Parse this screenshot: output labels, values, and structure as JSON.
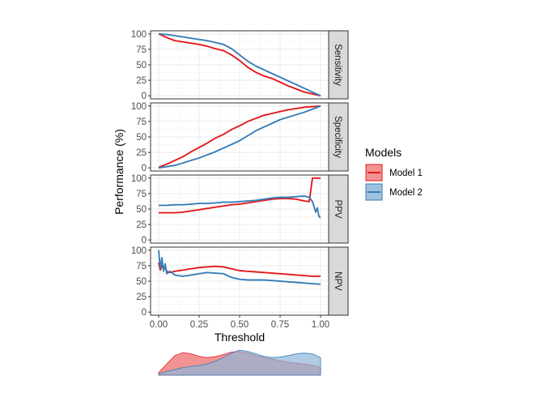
{
  "chart_data": {
    "type": "line",
    "xlabel": "Threshold",
    "ylabel": "Performance (%)",
    "xlim": [
      -0.05,
      1.05
    ],
    "xticks": [
      0.0,
      0.25,
      0.5,
      0.75,
      1.0
    ],
    "xtick_labels": [
      "0.00",
      "0.25",
      "0.50",
      "0.75",
      "1.00"
    ],
    "ylim": [
      -5,
      105
    ],
    "yticks": [
      0,
      25,
      50,
      75,
      100
    ],
    "ytick_labels": [
      "0",
      "25",
      "50",
      "75",
      "100"
    ],
    "legend": {
      "title": "Models",
      "placement": "right",
      "entries": [
        {
          "name": "Model 1",
          "color": "#e41a1c",
          "fill": "#f08080"
        },
        {
          "name": "Model 2",
          "color": "#377eb8",
          "fill": "#8fb6da"
        }
      ]
    },
    "colors": {
      "model1": "#e41a1c",
      "model2": "#377eb8",
      "strip_bg": "#d9d9d9"
    },
    "panels": [
      {
        "name": "Sensitivity",
        "series": [
          {
            "name": "Model 1",
            "x": [
              0,
              0.05,
              0.1,
              0.15,
              0.2,
              0.25,
              0.3,
              0.35,
              0.4,
              0.45,
              0.5,
              0.55,
              0.6,
              0.65,
              0.7,
              0.75,
              0.8,
              0.85,
              0.9,
              0.95,
              1.0
            ],
            "y": [
              100,
              94,
              89,
              87,
              85,
              83,
              80,
              76,
              73,
              66,
              57,
              46,
              38,
              32,
              28,
              22,
              16,
              11,
              6,
              3,
              0
            ]
          },
          {
            "name": "Model 2",
            "x": [
              0,
              0.05,
              0.1,
              0.15,
              0.2,
              0.25,
              0.3,
              0.35,
              0.4,
              0.45,
              0.5,
              0.55,
              0.6,
              0.65,
              0.7,
              0.75,
              0.8,
              0.85,
              0.9,
              0.95,
              1.0
            ],
            "y": [
              100,
              99,
              97,
              95,
              93,
              91,
              89,
              86,
              83,
              76,
              66,
              56,
              48,
              42,
              36,
              30,
              24,
              18,
              12,
              6,
              0
            ]
          }
        ]
      },
      {
        "name": "Specificity",
        "series": [
          {
            "name": "Model 1",
            "x": [
              0,
              0.05,
              0.1,
              0.15,
              0.2,
              0.25,
              0.3,
              0.35,
              0.4,
              0.45,
              0.5,
              0.55,
              0.6,
              0.65,
              0.7,
              0.75,
              0.8,
              0.85,
              0.9,
              0.95,
              1.0
            ],
            "y": [
              1,
              6,
              12,
              18,
              26,
              33,
              40,
              48,
              54,
              62,
              68,
              75,
              80,
              85,
              88,
              91,
              94,
              96,
              98,
              99,
              100
            ]
          },
          {
            "name": "Model 2",
            "x": [
              0,
              0.05,
              0.1,
              0.15,
              0.2,
              0.25,
              0.3,
              0.35,
              0.4,
              0.45,
              0.5,
              0.55,
              0.6,
              0.65,
              0.7,
              0.75,
              0.8,
              0.85,
              0.9,
              0.95,
              1.0
            ],
            "y": [
              0,
              2,
              4,
              8,
              12,
              16,
              21,
              26,
              32,
              38,
              44,
              52,
              60,
              66,
              72,
              78,
              82,
              86,
              90,
              95,
              100
            ]
          }
        ]
      },
      {
        "name": "PPV",
        "series": [
          {
            "name": "Model 1",
            "x": [
              0,
              0.05,
              0.1,
              0.15,
              0.2,
              0.25,
              0.3,
              0.35,
              0.4,
              0.45,
              0.5,
              0.55,
              0.6,
              0.65,
              0.7,
              0.75,
              0.8,
              0.85,
              0.9,
              0.93,
              0.95,
              0.96,
              0.97,
              1.0
            ],
            "y": [
              44,
              44,
              44,
              45,
              47,
              49,
              51,
              53,
              55,
              57,
              58,
              60,
              62,
              64,
              66,
              67,
              67,
              66,
              63,
              62,
              100,
              100,
              100,
              100
            ]
          },
          {
            "name": "Model 2",
            "x": [
              0,
              0.05,
              0.1,
              0.15,
              0.2,
              0.25,
              0.3,
              0.35,
              0.4,
              0.45,
              0.5,
              0.55,
              0.6,
              0.65,
              0.7,
              0.75,
              0.8,
              0.85,
              0.9,
              0.93,
              0.95,
              0.97,
              0.98,
              0.99,
              1.0
            ],
            "y": [
              56,
              56,
              57,
              57,
              58,
              59,
              59,
              60,
              61,
              61,
              62,
              63,
              64,
              66,
              68,
              69,
              69,
              70,
              71,
              69,
              62,
              45,
              52,
              38,
              36
            ]
          }
        ]
      },
      {
        "name": "NPV",
        "series": [
          {
            "name": "Model 1",
            "x": [
              0,
              0.01,
              0.02,
              0.03,
              0.04,
              0.05,
              0.07,
              0.1,
              0.15,
              0.2,
              0.25,
              0.3,
              0.35,
              0.4,
              0.45,
              0.5,
              0.55,
              0.6,
              0.65,
              0.7,
              0.75,
              0.8,
              0.85,
              0.9,
              0.95,
              1.0
            ],
            "y": [
              80,
              68,
              75,
              70,
              72,
              66,
              64,
              66,
              68,
              70,
              72,
              73,
              74,
              73,
              70,
              67,
              66,
              65,
              64,
              63,
              62,
              61,
              60,
              59,
              58,
              58
            ]
          },
          {
            "name": "Model 2",
            "x": [
              0,
              0.01,
              0.02,
              0.03,
              0.04,
              0.05,
              0.07,
              0.1,
              0.15,
              0.2,
              0.25,
              0.3,
              0.35,
              0.4,
              0.45,
              0.5,
              0.55,
              0.6,
              0.65,
              0.7,
              0.75,
              0.8,
              0.85,
              0.9,
              0.95,
              1.0
            ],
            "y": [
              100,
              70,
              88,
              66,
              78,
              62,
              66,
              60,
              58,
              60,
              62,
              64,
              63,
              62,
              56,
              53,
              52,
              52,
              52,
              51,
              50,
              49,
              48,
              47,
              46,
              45
            ]
          }
        ]
      }
    ],
    "density": {
      "x": [
        0,
        0.05,
        0.1,
        0.15,
        0.2,
        0.25,
        0.3,
        0.35,
        0.4,
        0.45,
        0.5,
        0.55,
        0.6,
        0.65,
        0.7,
        0.75,
        0.8,
        0.85,
        0.9,
        0.95,
        1.0
      ],
      "model1": [
        0.1,
        0.45,
        0.78,
        0.9,
        0.85,
        0.75,
        0.7,
        0.74,
        0.82,
        0.92,
        0.95,
        0.88,
        0.78,
        0.7,
        0.64,
        0.58,
        0.52,
        0.48,
        0.44,
        0.4,
        0.3
      ],
      "model2": [
        0.05,
        0.15,
        0.22,
        0.3,
        0.35,
        0.38,
        0.45,
        0.55,
        0.7,
        0.88,
        1.0,
        0.95,
        0.85,
        0.75,
        0.7,
        0.72,
        0.78,
        0.85,
        0.88,
        0.85,
        0.7
      ]
    }
  }
}
